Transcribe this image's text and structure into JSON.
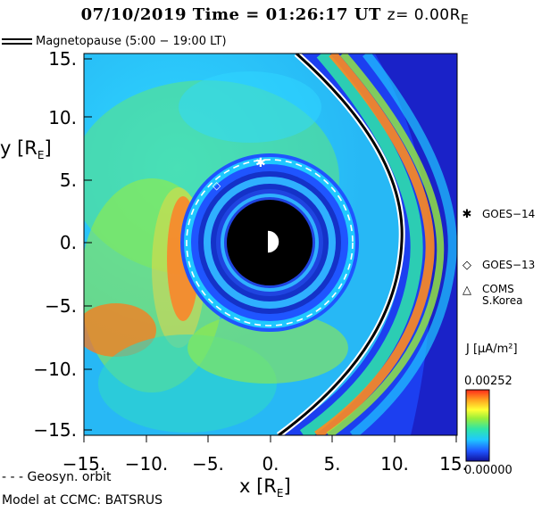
{
  "header": {
    "title": "07/10/2019 Time = 01:26:17 UT",
    "z_label": "z= 0.00R",
    "z_sub": "E"
  },
  "legend": {
    "magnetopause": "Magnetopause (5:00 − 19:00 LT)",
    "geosync": "- - - Geosyn. orbit"
  },
  "satellites": [
    {
      "symbol": "✱",
      "name": "GOES−14"
    },
    {
      "symbol": "◇",
      "name": "GOES−13"
    },
    {
      "symbol": "△",
      "name": "COMS\nS.Korea"
    }
  ],
  "colorbar": {
    "label": "J [μA/m²]",
    "max": "0.00252",
    "min": "0.00000",
    "colors": [
      "#10109a",
      "#1f55ff",
      "#1fc8ff",
      "#2fe6a8",
      "#9aef3a",
      "#ffff33",
      "#ffa21f",
      "#ff2a1a"
    ]
  },
  "footer": {
    "model": "Model at CCMC: BATSRUS"
  },
  "chart_data": {
    "type": "heatmap",
    "title": "07/10/2019 Time = 01:26:17 UT z= 0.00RE",
    "xlabel": "x [RE]",
    "ylabel": "y [RE]",
    "xlim": [
      -15,
      15
    ],
    "ylim": [
      -15,
      15
    ],
    "x_ticks": [
      "−15.",
      "−10.",
      "−5.",
      "0.",
      "5.",
      "10.",
      "15."
    ],
    "y_ticks": [
      "15.",
      "10.",
      "5.",
      "0.",
      "−5.",
      "−10.",
      "−15."
    ],
    "geosync_radius": 6.6,
    "satellites": [
      {
        "name": "GOES−14",
        "x": -0.5,
        "y": 6.5
      },
      {
        "name": "GOES−13",
        "x": -4.0,
        "y": 4.7
      }
    ],
    "colorbar_range": [
      0.0,
      0.00252
    ]
  }
}
